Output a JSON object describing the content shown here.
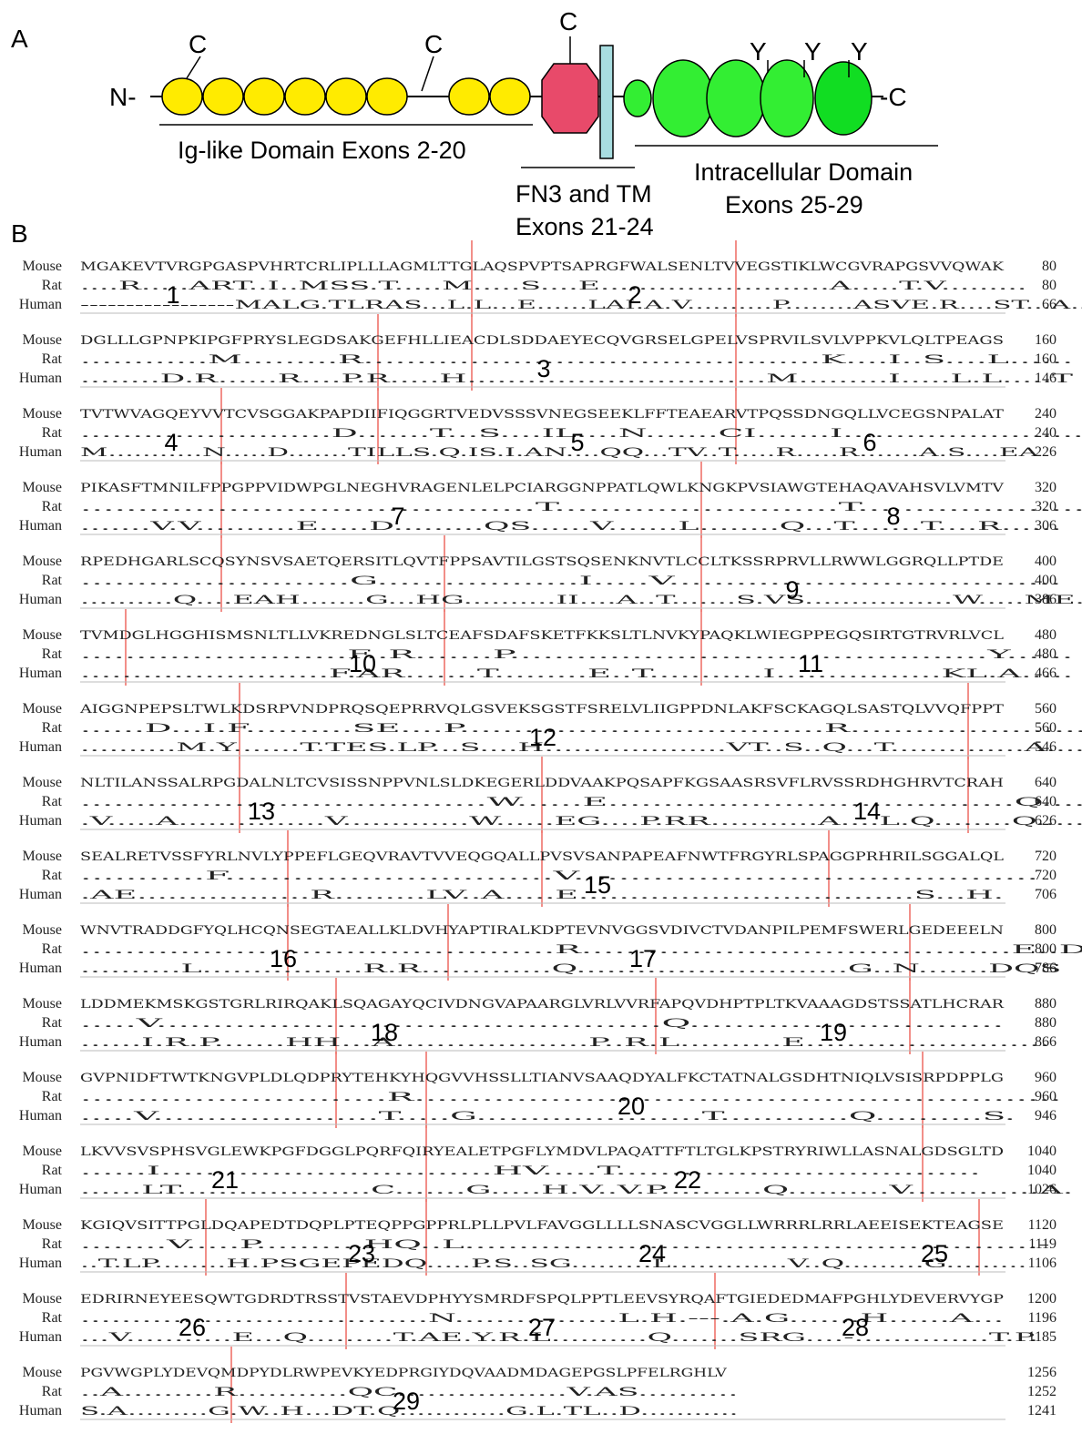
{
  "panel_a": {
    "label": "A",
    "n_term": "N-",
    "c_term": "-C",
    "cys": [
      "C",
      "C",
      "C"
    ],
    "tyr": [
      "Y",
      "Y",
      "Y"
    ],
    "captions": [
      "Ig-like Domain Exons 2-20",
      "FN3 and TM",
      "Exons 21-24",
      "Intracellular Domain",
      "Exons 25-29"
    ]
  },
  "panel_b": {
    "label": "B",
    "blocks": [
      {
        "rows": [
          {
            "species": "Mouse",
            "seq": "MGAKEVTVRGPGASPVHRTCRLIPLLLAGMLTTGLAQSPVPTSAPRGFWALSENLTVVEGSTIKLWCGVRAPGSVVQWAK",
            "end": 80
          },
          {
            "species": "Rat",
            "seq": "....R.....ART..I..MSS.T.....M.....S....E........................A.....T.V.........",
            "end": 80
          },
          {
            "species": "Human",
            "seq": "-----------------MALG.TLRAS...L.L...E......LAI.A.V..........P........ASVE.R....ST...A...",
            "end": 66
          }
        ],
        "exons": [
          "1",
          "2"
        ]
      },
      {
        "rows": [
          {
            "species": "Mouse",
            "seq": "DGLLLGPNPKIPGFPRYSLEGDSAKGEFHLLIEACDLSDDAEYECQVGRSELGPELVSPRVILSVLVPPKVLQLTPEAGS",
            "end": 160
          },
          {
            "species": "Rat",
            "seq": "............M.........R...........................................K....I..S....L......",
            "end": 160
          },
          {
            "species": "Human",
            "seq": "........D.R......R....P.R.....H..............................M.........I.....L.L.....T",
            "end": 146
          }
        ],
        "exons": [
          "3"
        ]
      },
      {
        "rows": [
          {
            "species": "Mouse",
            "seq": "TVTWVAGQEYVVTCVSGGAKPAPDIIFIQGGRTVEDVSSSVNEGSEEKLFFTEAEARVTPQSSDNGQLLVCEGSNPALAT",
            "end": 240
          },
          {
            "species": "Rat",
            "seq": "........................D.......T...S....IL....N.......CI.......I.......................D.",
            "end": 240
          },
          {
            "species": "Human",
            "seq": "M...........N.....D.......TILLS.Q.IS.I.AN....QQ...TV..T.....R.....R.......A.S....EA",
            "end": 226
          }
        ],
        "exons": [
          "4",
          "5",
          "6"
        ]
      },
      {
        "rows": [
          {
            "species": "Mouse",
            "seq": "PIKASFTMNILFPPGPPVIDWPGLNEGHVRAGENLELPCIARGGNPPATLQWLKNGKPVSIAWGTEHAQAVAHSVLVMTV",
            "end": 320
          },
          {
            "species": "Rat",
            "seq": "........................................T.........................T......................",
            "end": 320
          },
          {
            "species": "Human",
            "seq": ".......V.V..........E.....D.........QS......V.......L........Q...T.......T....R......",
            "end": 306
          }
        ],
        "exons": [
          "7",
          "8"
        ]
      },
      {
        "rows": [
          {
            "species": "Mouse",
            "seq": "RPEDHGARLSCQSYNSVSAETQERSITLQVTFPPSAVTILGSTSQSENKNVTLCCLTKSSRPRVLLRWWLGGRQLLPTDE",
            "end": 400
          },
          {
            "species": "Rat",
            "seq": "........................G..................I.....V...................................",
            "end": 400
          },
          {
            "species": "Human",
            "seq": "..........Q....EAH.......G...HG..........II....A..T.......S.VS................W.....ME.",
            "end": 386
          }
        ],
        "exons": [
          "9"
        ]
      },
      {
        "rows": [
          {
            "species": "Mouse",
            "seq": "TVMDGLHGGHISMSNLTLLVKREDNGLSLTCEAFSDAFSKETFKKSLTLNVKYPAQKLWIEGPPEGQSIRTGTRVRLVCL",
            "end": 480
          },
          {
            "species": "Rat",
            "seq": "........................F..R.......P...........................................Y......",
            "end": 480
          },
          {
            "species": "Human",
            "seq": "........................F.AR.......T.........E..T...........I................KL.A.....",
            "end": 466
          }
        ],
        "exons": [
          "10",
          "11"
        ]
      },
      {
        "rows": [
          {
            "species": "Mouse",
            "seq": "AIGGNPEPSLTWLKDSRPVNDPRQSQEPRRVQLGSVEKSGSTFSRELVLIIGPPDNLAKFSCKAGQLSASTQLVVQFPPT",
            "end": 560
          },
          {
            "species": "Rat",
            "seq": "......D...I.F..........SE....P..................................R........................",
            "end": 560
          },
          {
            "species": "Human",
            "seq": "..........M.Y.......T.TES.LP...S....H...................VT..S..Q...T..............A....",
            "end": 546
          }
        ],
        "exons": [
          "12"
        ]
      },
      {
        "rows": [
          {
            "species": "Mouse",
            "seq": "NLTILANSSALRPGDALNLTCVSISSNPPVNLSLDKEGERLDDVAAKPQSAPFKGSAASRSVFLRVSSRDHGHRVTCRAH",
            "end": 640
          },
          {
            "species": "Rat",
            "seq": ".....................................W......E.....................................Q.....",
            "end": 640
          },
          {
            "species": "Human",
            "seq": ".V.....A...............V.............W......EG....P.RR...........A....L.Q........Q.....",
            "end": 626
          }
        ],
        "exons": [
          "13",
          "14"
        ]
      },
      {
        "rows": [
          {
            "species": "Mouse",
            "seq": "SEALRETVSSFYRLNVLYPPEFLGEQVRAVTVVEQGQALLPVSVSANPAPEAFNWTFRGYRLSPAGGPRHRILSGGALQL",
            "end": 720
          },
          {
            "species": "Rat",
            "seq": "...........F.............................V.........................................",
            "end": 720
          },
          {
            "species": "Human",
            "seq": ".AE.................R.........LV..A.....E.................................S...H.",
            "end": 706
          }
        ],
        "exons": [
          "15"
        ]
      },
      {
        "rows": [
          {
            "species": "Mouse",
            "seq": "WNVTRADDGFYQLHCQNSEGTAEALLKLDVHYAPTIRALKDPTEVNVGGSVDIVCTVDANPILPEMFSWERLGEDEEELN",
            "end": 800
          },
          {
            "species": "Rat",
            "seq": "...........................................R.......................................E..D..",
            "end": 800
          },
          {
            "species": "Human",
            "seq": "..........L................R.R.............Q...........................G..N.......DQS",
            "end": 786
          }
        ],
        "exons": [
          "16",
          "17"
        ]
      },
      {
        "rows": [
          {
            "species": "Mouse",
            "seq": "LDDMEKMSKGSTGRLRIRQAKLSQAGAYQCIVDNGVAPAARGLVRLVVRFAPQVDHPTPLTKVAAAGDSTSSATLHCRAR",
            "end": 880
          },
          {
            "species": "Rat",
            "seq": ".....V.............................................Q............................",
            "end": 880
          },
          {
            "species": "Human",
            "seq": "......I.R.P.......HH...A...................P..R.L..........E........................",
            "end": 866
          }
        ],
        "exons": [
          "18",
          "19"
        ]
      },
      {
        "rows": [
          {
            "species": "Mouse",
            "seq": "GVPNIDFTWTKNGVPLDLQDPRYTEHKYHQGVVHSSLLTIANVSAAQDYALFKCTATNALGSDHTNIQLVSISRPDPPLG",
            "end": 960
          },
          {
            "species": "Rat",
            "seq": "...........................R.........................................................",
            "end": 960
          },
          {
            "species": "Human",
            "seq": ".....V.....................T.....G.....................T............Q..........S.",
            "end": 946
          }
        ],
        "exons": [
          "20"
        ]
      },
      {
        "rows": [
          {
            "species": "Mouse",
            "seq": "LKVVSVSPHSVGLEWKPGFDGGLPQRFQIRYEALETPGFLYMDVLPAQATTFTLTGLKPSTRYRIWLLASNALGDSGLTD",
            "end": 1040
          },
          {
            "species": "Rat",
            "seq": "......I..............................HV.....T.................................",
            "end": 1040
          },
          {
            "species": "Human",
            "seq": "......LT...................C.......G.....H.V..V.P..........Q..........V.............A.",
            "end": 1026
          }
        ],
        "exons": [
          "21",
          "22"
        ]
      },
      {
        "rows": [
          {
            "species": "Mouse",
            "seq": "KGIQVSITTPGLDQAPEDTDQPLPTEQPPGPPRLPLLPVLFAVGGLLLLSNASCVGGLLWRRRLRRLAEEISEKTEAGSE",
            "end": 1120
          },
          {
            "species": "Rat",
            "seq": "........V.....P..........HQ..L.....................................................-",
            "end": 1119
          },
          {
            "species": "Human",
            "seq": "..T.LP........H.PSGEPEDQ.....P.S..SG.........L.............V..Q.........G.........",
            "end": 1106
          }
        ],
        "exons": [
          "23",
          "24",
          "25"
        ]
      },
      {
        "rows": [
          {
            "species": "Mouse",
            "seq": "EDRIRNEYEESQWTGDRDTRSSTVSTAEVDPHYYSMRDFSPQLPPTLEEVSYRQAFTGIEDEDMAFPGHLYDEVERVYGP",
            "end": 1200
          },
          {
            "species": "Rat",
            "seq": "..................................N................L.H.---.A.G.......H......A...",
            "end": 1196
          },
          {
            "species": "Human",
            "seq": "...V...........E...Q.........T.AE.Y.R.L..........Q.......SRG....-..............T.P.",
            "end": 1185
          }
        ],
        "exons": [
          "26",
          "27",
          "28"
        ]
      },
      {
        "rows": [
          {
            "species": "Mouse",
            "seq": "PGVWGPLYDEVQMDPYDLRWPEVKYEDPRGIYDQVAADMDAGEPGSLPFELRGHLV",
            "end": 1256
          },
          {
            "species": "Rat",
            "seq": "..A.........R...........QC.................V.AS..........",
            "end": 1252
          },
          {
            "species": "Human",
            "seq": "S.A.........G.W..H...DT.Q............G.L.TL..D...........",
            "end": 1241
          }
        ],
        "exons": [
          "29"
        ]
      }
    ]
  }
}
